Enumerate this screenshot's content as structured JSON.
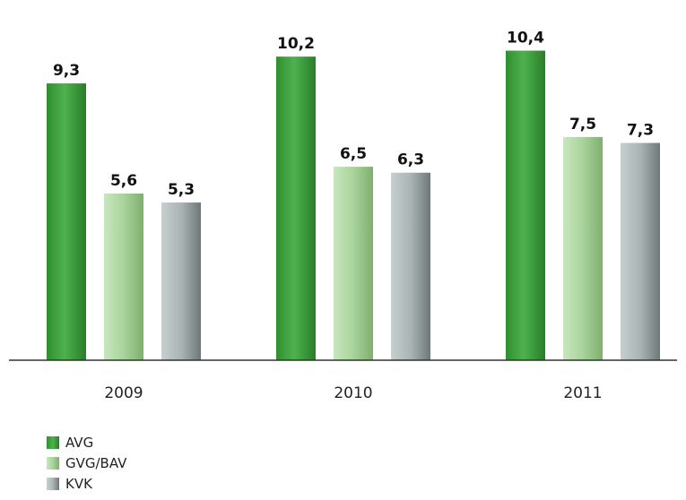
{
  "chart_data": {
    "type": "bar",
    "categories": [
      "2009",
      "2010",
      "2011"
    ],
    "series": [
      {
        "name": "AVG",
        "values": [
          "9,3",
          "10,2",
          "10,4"
        ],
        "numeric": [
          9.3,
          10.2,
          10.4
        ],
        "color": "#3a9e3a"
      },
      {
        "name": "GVG/BAV",
        "values": [
          "5,6",
          "6,5",
          "7,5"
        ],
        "numeric": [
          5.6,
          6.5,
          7.5
        ],
        "color": "#a8d39a"
      },
      {
        "name": "KVK",
        "values": [
          "5,3",
          "6,3",
          "7,3"
        ],
        "numeric": [
          5.3,
          6.3,
          7.3
        ],
        "color": "#aab4b4"
      }
    ],
    "ylim": [
      0,
      11.5
    ],
    "grid": false,
    "legend_position": "bottom-left"
  }
}
